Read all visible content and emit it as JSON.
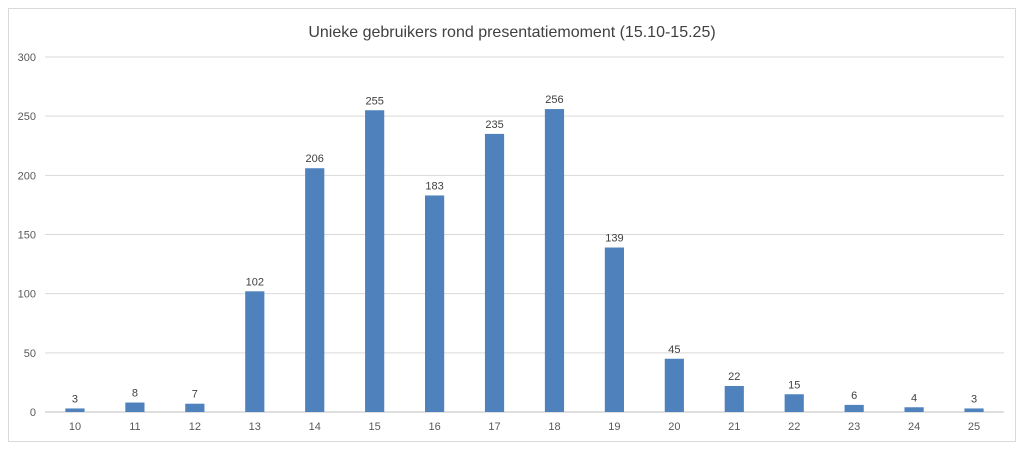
{
  "chart_data": {
    "type": "bar",
    "title": "Unieke gebruikers rond presentatiemoment (15.10-15.25)",
    "categories": [
      "10",
      "11",
      "12",
      "13",
      "14",
      "15",
      "16",
      "17",
      "18",
      "19",
      "20",
      "21",
      "22",
      "23",
      "24",
      "25"
    ],
    "values": [
      3,
      8,
      7,
      102,
      206,
      255,
      183,
      235,
      256,
      139,
      45,
      22,
      15,
      6,
      4,
      3
    ],
    "ylim": [
      0,
      300
    ],
    "yticks": [
      "0",
      "50",
      "100",
      "150",
      "200",
      "250",
      "300"
    ],
    "grid": true,
    "legend": "none",
    "bar_color": "#4f81bd"
  }
}
